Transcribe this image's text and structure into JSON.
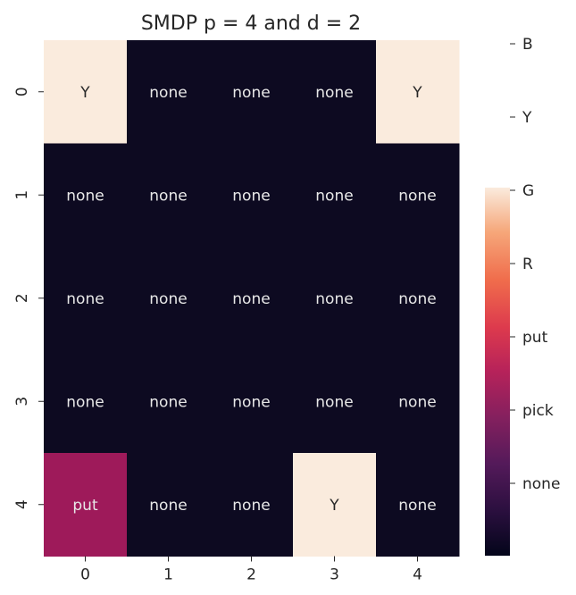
{
  "chart_data": {
    "type": "heatmap",
    "title": "SMDP p = 4 and d = 2",
    "xlabel": "",
    "ylabel": "",
    "x_ticks": [
      "0",
      "1",
      "2",
      "3",
      "4"
    ],
    "y_ticks": [
      "0",
      "1",
      "2",
      "3",
      "4"
    ],
    "cells": [
      [
        "Y",
        "none",
        "none",
        "none",
        "Y"
      ],
      [
        "none",
        "none",
        "none",
        "none",
        "none"
      ],
      [
        "none",
        "none",
        "none",
        "none",
        "none"
      ],
      [
        "none",
        "none",
        "none",
        "none",
        "none"
      ],
      [
        "put",
        "none",
        "none",
        "Y",
        "none"
      ]
    ],
    "colorbar": {
      "labels": [
        "none",
        "pick",
        "put",
        "R",
        "G",
        "Y",
        "B"
      ],
      "range_top_label": "G"
    },
    "colors": {
      "none": "#0d0a21",
      "put": "#9e1a5a",
      "Y": "#faebdd",
      "text_light": "#e8e8e8",
      "text_dark": "#262626"
    }
  }
}
